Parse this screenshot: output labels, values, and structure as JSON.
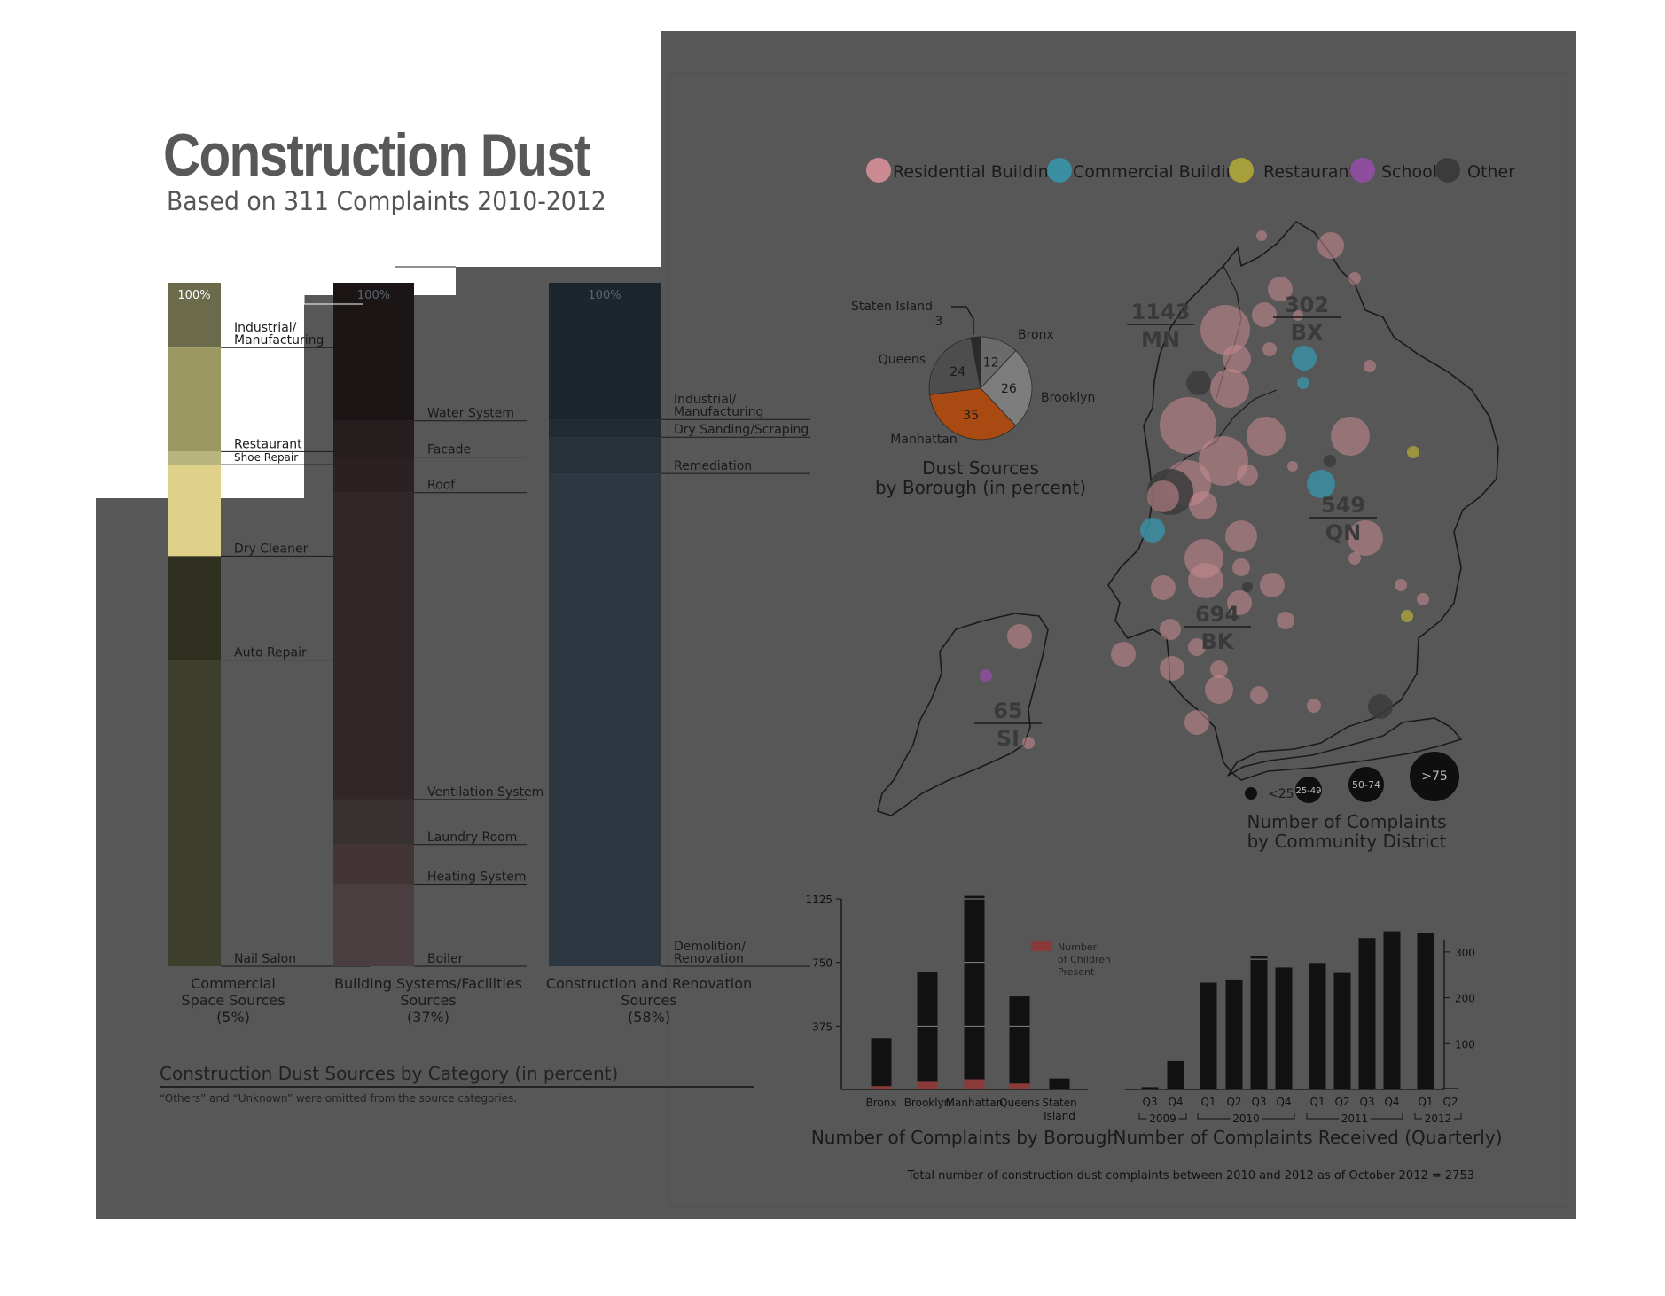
{
  "header": {
    "title": "Construction Dust",
    "subtitle": "Based on 311 Complaints 2010-2012"
  },
  "colors": {
    "background": "#ffffff",
    "panel": "#575757",
    "commercial": "#3c3c2f",
    "building": "#312729",
    "construction": "#2d3741",
    "residential": "#c98a91",
    "commercial_building": "#3a8fa3",
    "restaurant": "#a69f3b",
    "school": "#8d4ea0",
    "other": "#3b3b3b",
    "manhattan": "#a84a12",
    "children": "#8a3a38"
  },
  "legend": [
    {
      "label": "Residential Building",
      "color": "#c98a91"
    },
    {
      "label": "Commercial Building",
      "color": "#3a8fa3"
    },
    {
      "label": "Restaurant",
      "color": "#a69f3b"
    },
    {
      "label": "School",
      "color": "#8d4ea0"
    },
    {
      "label": "Other",
      "color": "#3b3b3b"
    }
  ],
  "map": {
    "borough_labels": [
      {
        "value": "1143",
        "name": "MN"
      },
      {
        "value": "302",
        "name": "BX"
      },
      {
        "value": "549",
        "name": "QN"
      },
      {
        "value": "694",
        "name": "BK"
      },
      {
        "value": "65",
        "name": "SI"
      }
    ],
    "size_legend": [
      "<25",
      "25-49",
      "50-74",
      ">75"
    ],
    "size_title_1": "Number of Complaints",
    "size_title_2": "by Community District"
  },
  "category_footer": {
    "heading": "Construction Dust Sources by Category (in percent)",
    "note": "“Others” and “Unknown” were omitted from the source categories.",
    "total_note": "Total number of construction dust complaints between 2010 and 2012 as of October 2012 = 2753"
  },
  "chart_data": [
    {
      "type": "bar",
      "stacked": true,
      "title": "Construction Dust Sources by Category (in percent)",
      "columns": [
        {
          "top_label": "100%",
          "name_lines": [
            "Commercial",
            "Space Sources",
            "(5%)"
          ],
          "segments": [
            {
              "label": "Industrial/ Manufacturing",
              "value": 9.5,
              "color": "#6b6a4a"
            },
            {
              "label": "Restaurant",
              "value": 15.2,
              "color": "#9b9862"
            },
            {
              "label": "Shoe Repair",
              "value": 1.9,
              "color": "#b8b67e"
            },
            {
              "label": "Dry Cleaner",
              "value": 13.4,
              "color": "#dfd08a"
            },
            {
              "label": "Auto Repair",
              "value": 15.2,
              "color": "#2f2f1f"
            },
            {
              "label": "Nail Salon",
              "value": 44.8,
              "color": "#3d3e2b"
            }
          ]
        },
        {
          "top_label": "100%",
          "name_lines": [
            "Building Systems/Facilities",
            "Sources",
            "(37%)"
          ],
          "segments": [
            {
              "label": "Water System",
              "value": 20.2,
              "color": "#1b1516"
            },
            {
              "label": "Facade",
              "value": 5.3,
              "color": "#261d1e"
            },
            {
              "label": "Roof",
              "value": 5.2,
              "color": "#2b2123"
            },
            {
              "label": "Ventilation System",
              "value": 44.9,
              "color": "#312729"
            },
            {
              "label": "Laundry Room",
              "value": 6.6,
              "color": "#393031"
            },
            {
              "label": "Heating System",
              "value": 5.8,
              "color": "#433536"
            },
            {
              "label": "Boiler",
              "value": 12.0,
              "color": "#4b3e40"
            }
          ]
        },
        {
          "top_label": "100%",
          "name_lines": [
            "Construction and Renovation",
            "Sources",
            "(58%)"
          ],
          "segments": [
            {
              "label": "Industrial/ Manufacturing",
              "value": 20.0,
              "color": "#1d262d"
            },
            {
              "label": "Dry Sanding/Scraping",
              "value": 2.6,
              "color": "#212b33"
            },
            {
              "label": "Remediation",
              "value": 5.3,
              "color": "#26313a"
            },
            {
              "label": "Demolition/ Renovation",
              "value": 72.1,
              "color": "#2d3741"
            }
          ]
        }
      ]
    },
    {
      "type": "pie",
      "title_lines": [
        "Dust Sources",
        "by Borough (in percent)"
      ],
      "slices": [
        {
          "label": "Bronx",
          "value": 12,
          "color": "#6a6a6a"
        },
        {
          "label": "Brooklyn",
          "value": 26,
          "color": "#7c7c7c"
        },
        {
          "label": "Manhattan",
          "value": 35,
          "color": "#a84a12"
        },
        {
          "label": "Queens",
          "value": 24,
          "color": "#4d4d4d"
        },
        {
          "label": "Staten Island",
          "value": 3,
          "color": "#2a2a2a"
        }
      ]
    },
    {
      "type": "bar",
      "stacked": true,
      "title": "Number of Complaints by Borough",
      "yticks": [
        375,
        750,
        1125
      ],
      "ylim": [
        0,
        1125
      ],
      "legend_lines": [
        "Number",
        "of Children",
        "Present"
      ],
      "categories": [
        "Bronx",
        "Brooklyn",
        "Manhattan",
        "Queens",
        "Staten Island"
      ],
      "category_lines": [
        [
          "Bronx"
        ],
        [
          "Brooklyn"
        ],
        [
          "Manhattan"
        ],
        [
          "Queens"
        ],
        [
          "Staten",
          "Island"
        ]
      ],
      "series": [
        {
          "name": "Number of Children Present",
          "values": [
            20,
            45,
            60,
            35,
            2
          ]
        },
        {
          "name": "Total",
          "values": [
            302,
            694,
            1143,
            549,
            65
          ]
        }
      ]
    },
    {
      "type": "bar",
      "title": "Number of Complaints Received (Quarterly)",
      "yticks": [
        100,
        200,
        300
      ],
      "ylim": [
        0,
        350
      ],
      "quarters": [
        "Q3",
        "Q4",
        "Q1",
        "Q2",
        "Q3",
        "Q4",
        "Q1",
        "Q2",
        "Q3",
        "Q4",
        "Q1",
        "Q2"
      ],
      "years": [
        {
          "label": "2009",
          "from": 0,
          "to": 1
        },
        {
          "label": "2010",
          "from": 2,
          "to": 5
        },
        {
          "label": "2011",
          "from": 6,
          "to": 9
        },
        {
          "label": "2012",
          "from": 10,
          "to": 11
        }
      ],
      "values": [
        5,
        62,
        233,
        240,
        290,
        266,
        276,
        254,
        330,
        345,
        342,
        3
      ]
    }
  ]
}
